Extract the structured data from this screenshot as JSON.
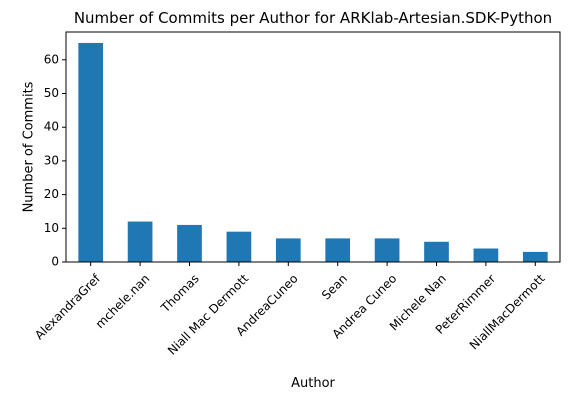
{
  "chart_data": {
    "type": "bar",
    "title": "Number of Commits per Author for ARKlab-Artesian.SDK-Python",
    "xlabel": "Author",
    "ylabel": "Number of Commits",
    "categories": [
      "AlexandraGref",
      "mchele.nan",
      "Thomas",
      "Niall Mac Dermott",
      "AndreaCuneo",
      "Sean",
      "Andrea Cuneo",
      "Michele Nan",
      "PeterRimmer",
      "NiallMacDermott"
    ],
    "values": [
      65,
      12,
      11,
      9,
      7,
      7,
      7,
      6,
      4,
      3
    ],
    "ylim": [
      0,
      68.25
    ],
    "yticks": [
      0,
      10,
      20,
      30,
      40,
      50,
      60
    ],
    "grid": false,
    "bar_color": "#1f77b4"
  }
}
